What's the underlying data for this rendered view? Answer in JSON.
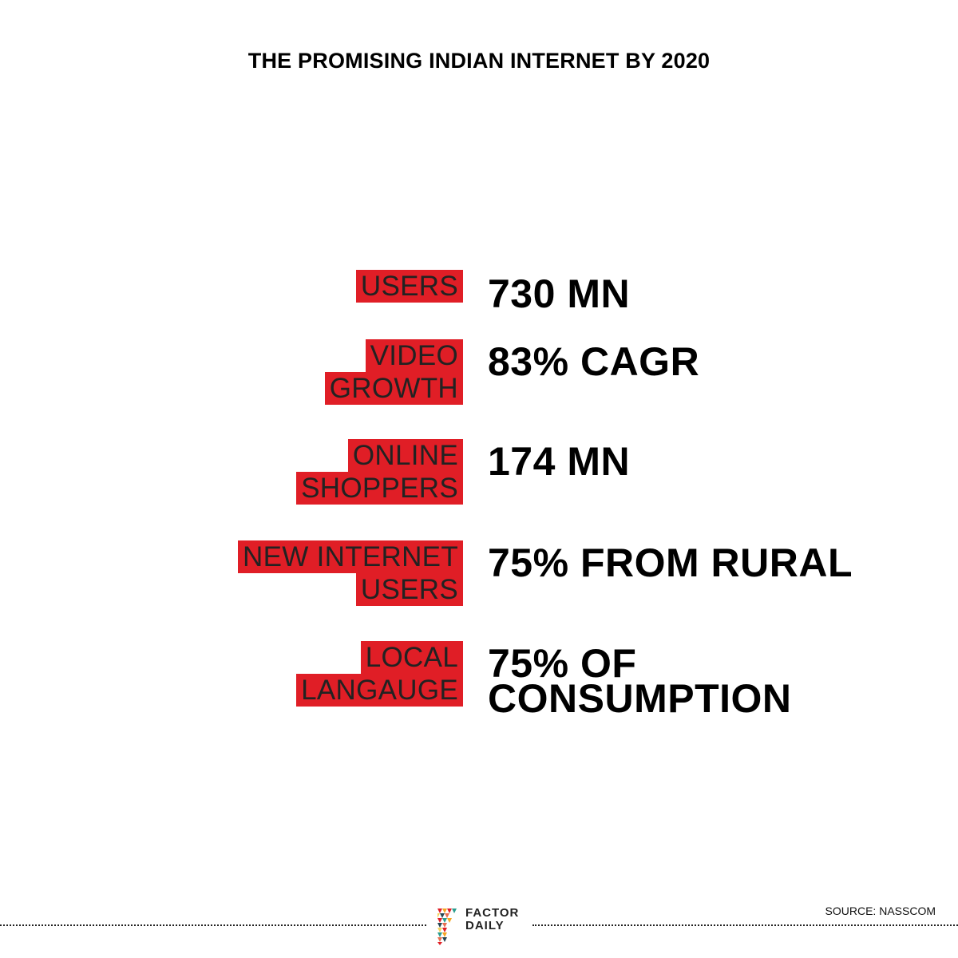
{
  "title": "THE PROMISING INDIAN INTERNET BY 2020",
  "stats": [
    {
      "label_lines": [
        "USERS"
      ],
      "value_lines": [
        "730 MN"
      ]
    },
    {
      "label_lines": [
        "VIDEO",
        "GROWTH"
      ],
      "value_lines": [
        "83% CAGR"
      ]
    },
    {
      "label_lines": [
        "ONLINE",
        "SHOPPERS"
      ],
      "value_lines": [
        "174 MN"
      ]
    },
    {
      "label_lines": [
        "NEW INTERNET",
        "USERS"
      ],
      "value_lines": [
        "75% FROM RURAL"
      ]
    },
    {
      "label_lines": [
        "LOCAL",
        "LANGAUGE"
      ],
      "value_lines": [
        "75% OF",
        "CONSUMPTION"
      ]
    }
  ],
  "brand": {
    "line1": "FACTOR",
    "line2": "DAILY"
  },
  "source": "SOURCE: NASSCOM",
  "colors": {
    "accent": "#e01e26",
    "text": "#000000",
    "background": "#ffffff"
  }
}
